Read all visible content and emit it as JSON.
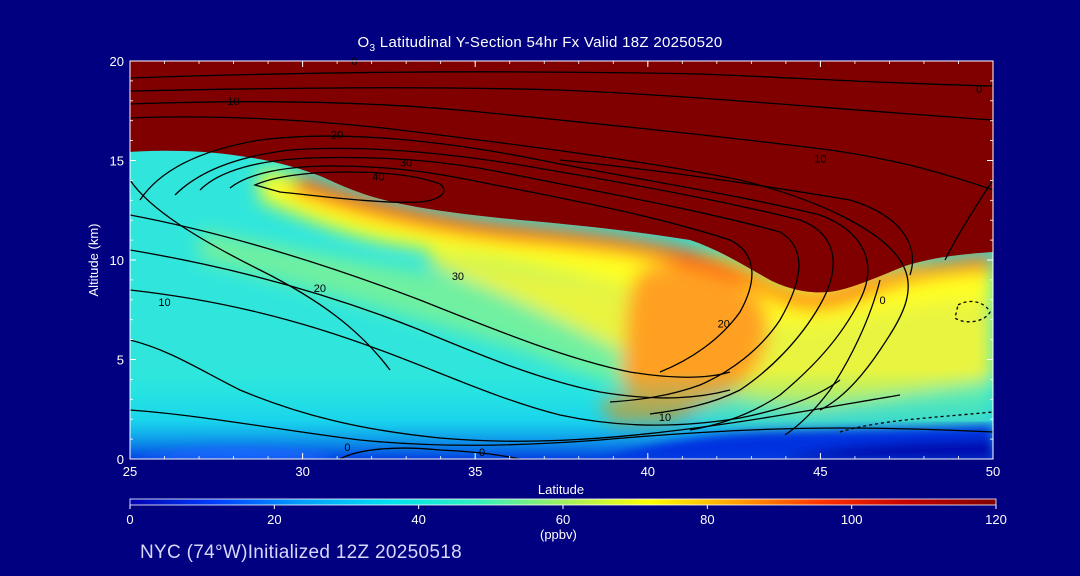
{
  "chart_data": {
    "type": "heatmap",
    "title_main": "O",
    "title_sub": "3",
    "title_rest": " Latitudinal Y-Section 54hr  Fx Valid 18Z 20250520",
    "xlabel": "Latitude",
    "ylabel": "Altitude (km)",
    "xlim": [
      25,
      50
    ],
    "ylim": [
      0,
      20
    ],
    "x_ticks": [
      25,
      30,
      35,
      40,
      45,
      50
    ],
    "y_ticks": [
      0,
      5,
      10,
      15,
      20
    ],
    "colorbar": {
      "min": 0,
      "max": 120,
      "ticks": [
        0,
        20,
        40,
        60,
        80,
        100,
        120
      ],
      "units": "(ppbv)",
      "colors": [
        "#0000b0",
        "#0040ff",
        "#00a0ff",
        "#00e0f0",
        "#30f0c0",
        "#a0f060",
        "#ffff00",
        "#ffa000",
        "#ff3000",
        "#c00000",
        "#800000"
      ]
    },
    "contour_labels": [
      {
        "text": "0",
        "x": 31.3,
        "y": 0.6
      },
      {
        "text": "0",
        "x": 35.2,
        "y": 0.35
      },
      {
        "text": "0",
        "x": 46.8,
        "y": 8.0
      },
      {
        "text": "0",
        "x": 49.6,
        "y": 18.6
      },
      {
        "text": "0",
        "x": 31.5,
        "y": 20.0
      },
      {
        "text": "10",
        "x": 26.0,
        "y": 7.9
      },
      {
        "text": "10",
        "x": 28.0,
        "y": 18.0
      },
      {
        "text": "10",
        "x": 45.0,
        "y": 15.1
      },
      {
        "text": "10",
        "x": 40.5,
        "y": 2.1
      },
      {
        "text": "20",
        "x": 30.5,
        "y": 8.6
      },
      {
        "text": "20",
        "x": 31.0,
        "y": 16.3
      },
      {
        "text": "20",
        "x": 42.2,
        "y": 6.8
      },
      {
        "text": "30",
        "x": 34.5,
        "y": 9.2
      },
      {
        "text": "30",
        "x": 33.0,
        "y": 14.9
      },
      {
        "text": "40",
        "x": 32.2,
        "y": 14.2
      }
    ]
  },
  "footer": {
    "text": "NYC (74°W)Initialized 12Z 20250518"
  }
}
